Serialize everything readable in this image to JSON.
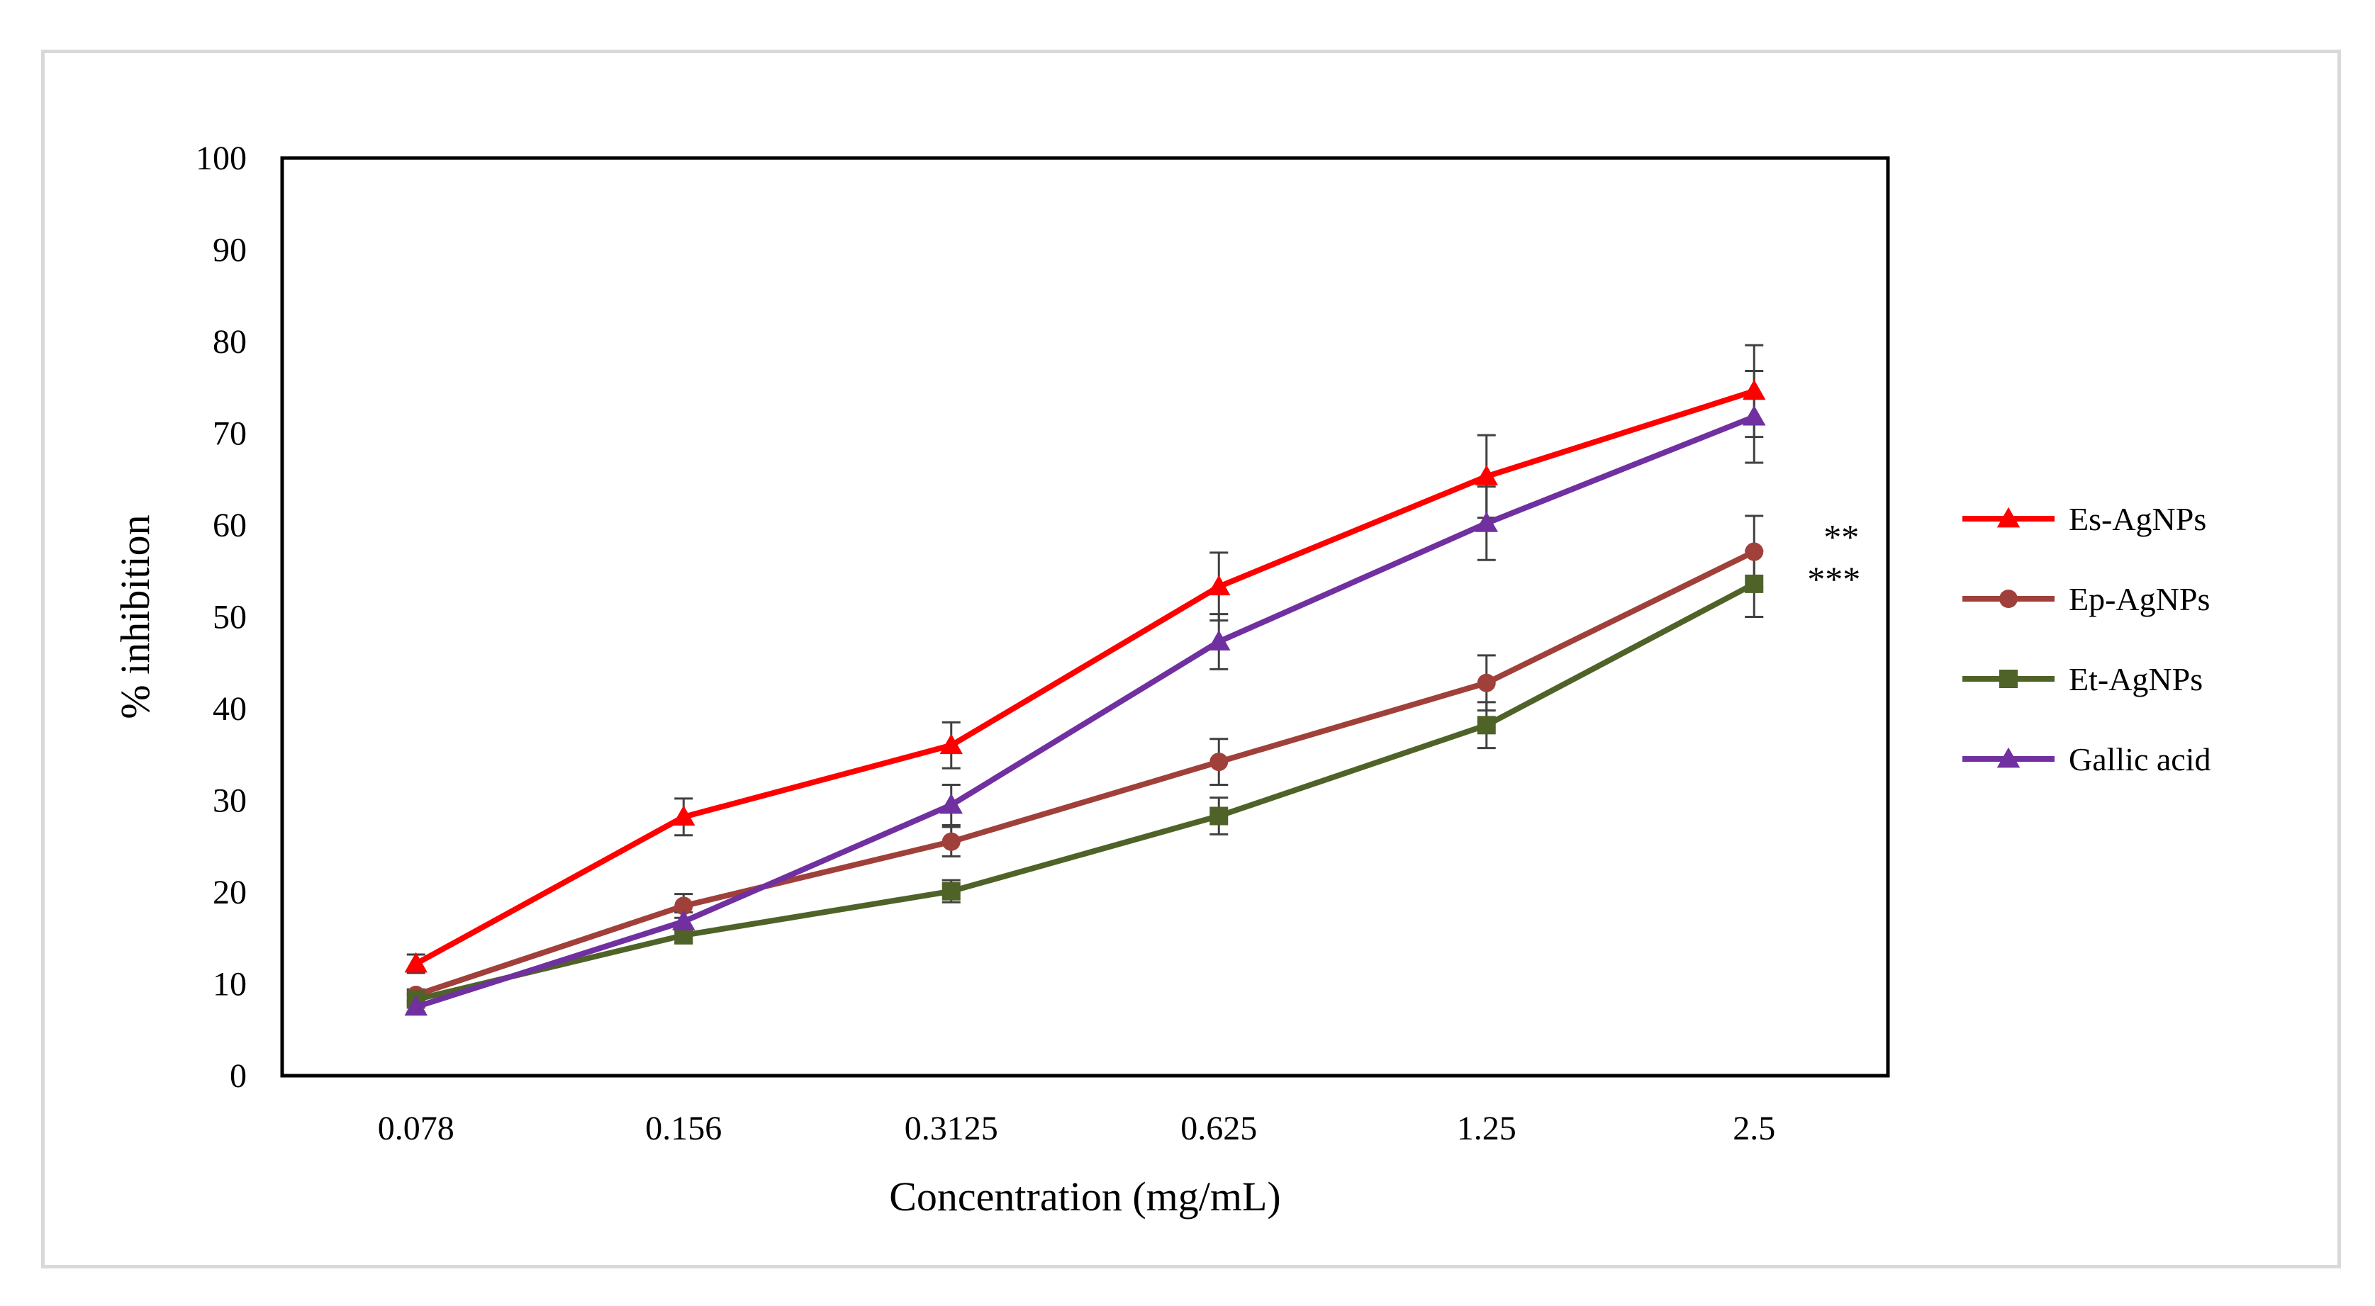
{
  "chart_data": {
    "type": "line",
    "title": "",
    "xlabel": "Concentration (mg/mL)",
    "ylabel": "% inhibition",
    "categories": [
      "0.078",
      "0.156",
      "0.3125",
      "0.625",
      "1.25",
      "2.5"
    ],
    "ylim": [
      0,
      100
    ],
    "yticks": [
      0,
      10,
      20,
      30,
      40,
      50,
      60,
      70,
      80,
      90,
      100
    ],
    "grid": false,
    "legend_position": "right",
    "series": [
      {
        "name": "Es-AgNPs",
        "color": "#ff0000",
        "marker": "triangle",
        "values": [
          12.2,
          28.2,
          36.0,
          53.3,
          65.3,
          74.6
        ],
        "errors": [
          1.0,
          2.0,
          2.5,
          3.7,
          4.5,
          5.0
        ]
      },
      {
        "name": "Ep-AgNPs",
        "color": "#a0403a",
        "marker": "circle",
        "values": [
          8.8,
          18.5,
          25.5,
          34.2,
          42.8,
          57.1
        ],
        "errors": [
          0.6,
          1.3,
          1.6,
          2.5,
          3.0,
          3.9
        ]
      },
      {
        "name": "Et-AgNPs",
        "color": "#4f6228",
        "marker": "square",
        "values": [
          8.3,
          15.3,
          20.1,
          28.3,
          38.2,
          53.6
        ],
        "errors": [
          0.6,
          0.8,
          1.2,
          2.0,
          2.5,
          3.6
        ]
      },
      {
        "name": "Gallic acid",
        "color": "#7030a0",
        "marker": "triangle",
        "values": [
          7.5,
          16.8,
          29.5,
          47.3,
          60.2,
          71.8
        ],
        "errors": [
          0.5,
          1.0,
          2.2,
          3.0,
          4.0,
          5.0
        ]
      }
    ],
    "annotations": [
      {
        "text": "**",
        "series": "Ep-AgNPs"
      },
      {
        "text": "***",
        "series": "Et-AgNPs"
      }
    ]
  }
}
